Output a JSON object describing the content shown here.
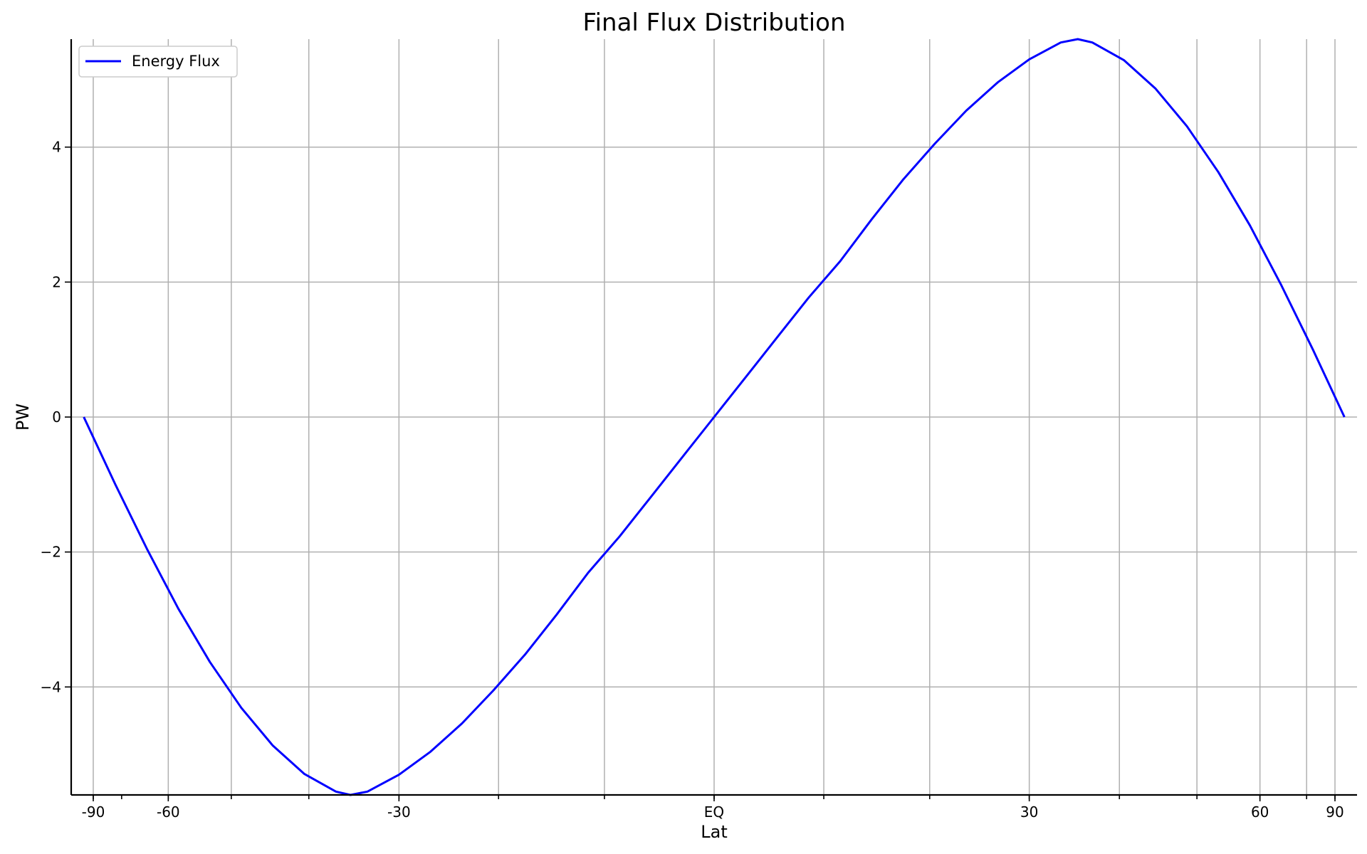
{
  "chart_data": {
    "type": "line",
    "title": "Final Flux Distribution",
    "xlabel": "Lat",
    "ylabel": "PW",
    "xlim": [
      -1.02,
      1.02
    ],
    "ylim": [
      -5.6,
      5.6
    ],
    "x_ticks": [
      {
        "value": -0.985,
        "label": "-90"
      },
      {
        "value": -0.866,
        "label": "-60"
      },
      {
        "value": -0.5,
        "label": "-30"
      },
      {
        "value": 0,
        "label": "EQ"
      },
      {
        "value": 0.5,
        "label": "30"
      },
      {
        "value": 0.866,
        "label": "60"
      },
      {
        "value": 0.985,
        "label": "90"
      }
    ],
    "x_minor_ticks": [
      -0.985,
      -0.94,
      -0.866,
      -0.766,
      -0.643,
      -0.5,
      -0.342,
      -0.174,
      0,
      0.174,
      0.342,
      0.5,
      0.643,
      0.766,
      0.866,
      0.94,
      0.985
    ],
    "grid_x": [
      -0.985,
      -0.866,
      -0.766,
      -0.643,
      -0.5,
      -0.342,
      -0.174,
      0,
      0.174,
      0.342,
      0.5,
      0.643,
      0.766,
      0.866,
      0.94,
      0.985
    ],
    "y_ticks": [
      {
        "value": -4,
        "label": "−4"
      },
      {
        "value": -2,
        "label": "−2"
      },
      {
        "value": 0,
        "label": "0"
      },
      {
        "value": 2,
        "label": "2"
      },
      {
        "value": 4,
        "label": "4"
      }
    ],
    "grid": true,
    "legend_position": "top-left",
    "series": [
      {
        "name": "Energy Flux",
        "color": "#0000ff",
        "x": [
          -1.0,
          -0.95,
          -0.9,
          -0.85,
          -0.8,
          -0.75,
          -0.7,
          -0.65,
          -0.6,
          -0.577,
          -0.55,
          -0.5,
          -0.45,
          -0.4,
          -0.35,
          -0.3,
          -0.25,
          -0.2,
          -0.15,
          -0.1,
          -0.05,
          0.0,
          0.05,
          0.1,
          0.15,
          0.2,
          0.25,
          0.3,
          0.35,
          0.4,
          0.45,
          0.5,
          0.55,
          0.577,
          0.6,
          0.65,
          0.7,
          0.75,
          0.8,
          0.85,
          0.9,
          0.95,
          1.0
        ],
        "y": [
          0.0,
          -1.0,
          -1.95,
          -2.84,
          -3.63,
          -4.31,
          -4.87,
          -5.29,
          -5.55,
          -5.6,
          -5.55,
          -5.3,
          -4.96,
          -4.54,
          -4.05,
          -3.52,
          -2.93,
          -2.31,
          -1.77,
          -1.18,
          -0.59,
          0.0,
          0.59,
          1.18,
          1.77,
          2.31,
          2.93,
          3.52,
          4.05,
          4.54,
          4.96,
          5.3,
          5.55,
          5.6,
          5.55,
          5.29,
          4.87,
          4.31,
          3.63,
          2.84,
          1.95,
          1.0,
          0.0
        ]
      }
    ]
  }
}
